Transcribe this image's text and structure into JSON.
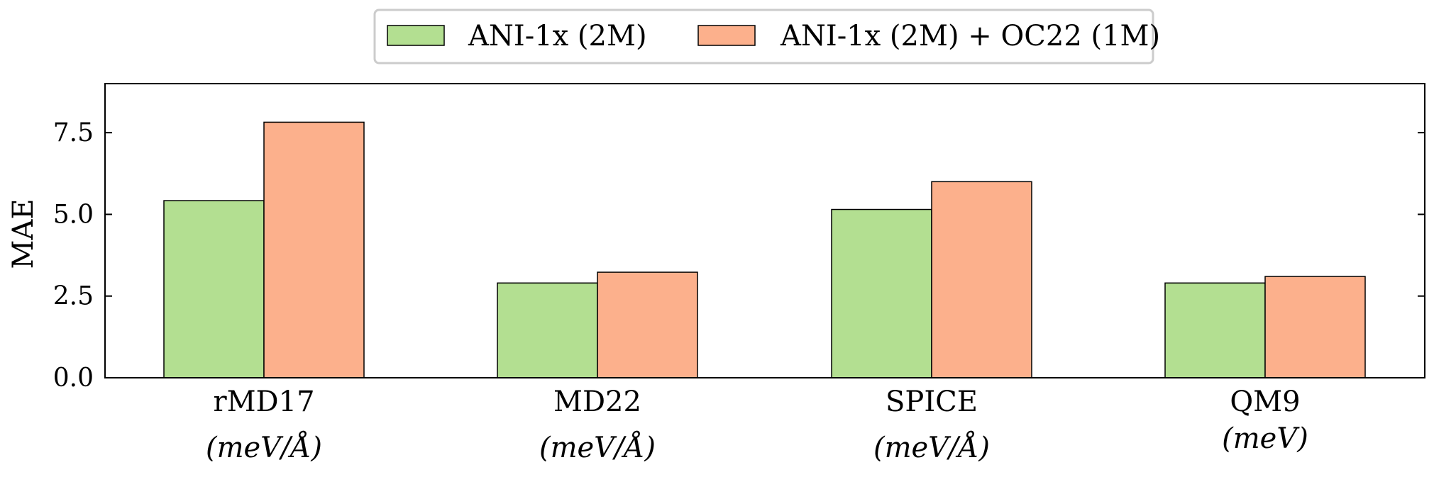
{
  "chart_data": {
    "type": "bar",
    "title": "",
    "xlabel": "",
    "ylabel": "MAE",
    "ylim": [
      0,
      9
    ],
    "yticks": [
      0.0,
      2.5,
      5.0,
      7.5
    ],
    "ytick_labels": [
      "0.0",
      "2.5",
      "5.0",
      "7.5"
    ],
    "categories": [
      "rMD17",
      "MD22",
      "SPICE",
      "QM9"
    ],
    "category_units": [
      "(meV/Å)",
      "(meV/Å)",
      "(meV/Å)",
      "(meV)"
    ],
    "series": [
      {
        "name": "ANI-1x (2M)",
        "color": "#b3df91",
        "values": [
          5.42,
          2.9,
          5.15,
          2.9
        ]
      },
      {
        "name": "ANI-1x (2M) + OC22 (1M)",
        "color": "#fcb08c",
        "values": [
          7.82,
          3.23,
          6.0,
          3.1
        ]
      }
    ],
    "legend_position": "top-center",
    "grid": false
  }
}
